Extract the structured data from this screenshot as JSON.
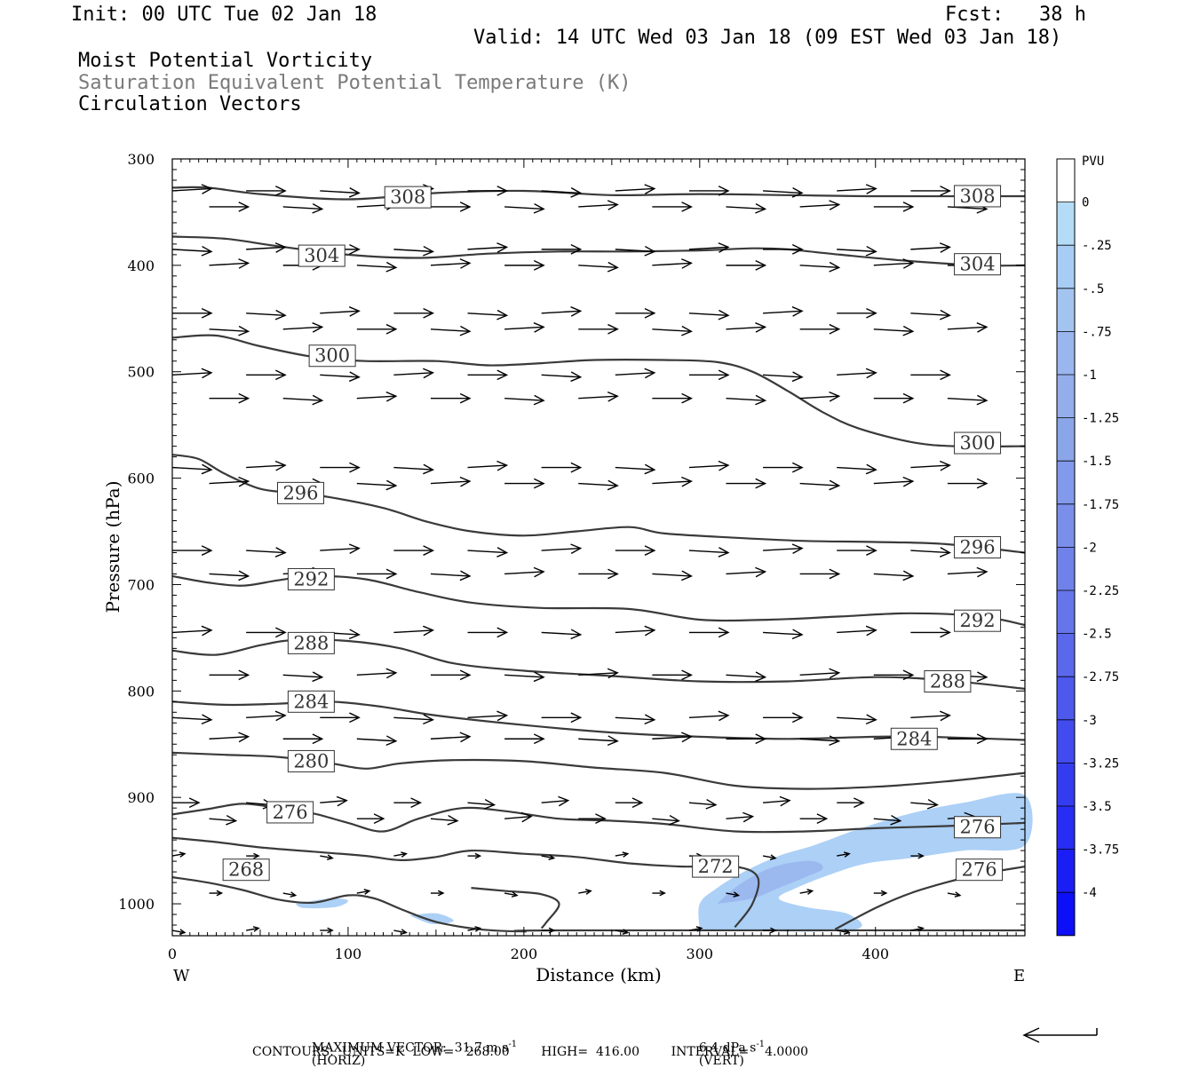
{
  "header": {
    "init": "Init: 00 UTC Tue 02 Jan 18",
    "fcst": "Fcst:   38 h",
    "valid": "Valid: 14 UTC Wed 03 Jan 18 (09 EST Wed 03 Jan 18)",
    "field1": "Moist Potential Vorticity",
    "field2": "Saturation Equivalent Potential Temperature (K)",
    "field3": "Circulation Vectors"
  },
  "footer": {
    "max_vector": "MAXIMUM VECTOR:  31.7 m s",
    "horiz": "(HORIZ)",
    "vert_val": "6.4 dPa s",
    "vert": "(VERT)",
    "contours": "CONTOURS:  UNITS=K  LOW=   268.00        HIGH=  416.00        INTERVAL=    4.0000",
    "exp": "-1"
  },
  "colors": {
    "contour": "#3a3a3a",
    "pv_light": "#b4dcf7",
    "pv_mid": "#a3c4ef",
    "pv_dark": "#8aa6e8"
  },
  "chart_data": {
    "type": "contour",
    "xlabel": "Distance (km)",
    "ylabel": "Pressure (hPa)",
    "xlim": [
      0,
      485
    ],
    "ylim": [
      300,
      1030
    ],
    "x_ticks": [
      0,
      100,
      200,
      300,
      400
    ],
    "x_tick_labels": [
      "0",
      "100",
      "200",
      "300",
      "400"
    ],
    "y_ticks": [
      300,
      400,
      500,
      600,
      700,
      800,
      900,
      1000
    ],
    "y_tick_labels": [
      "300",
      "400",
      "500",
      "600",
      "700",
      "800",
      "900",
      "1000"
    ],
    "west_label": "W",
    "east_label": "E",
    "colorbar": {
      "unit": "PVU",
      "levels": [
        "0",
        "-.25",
        "-.5",
        "-.75",
        "-1",
        "-1.25",
        "-1.5",
        "-1.75",
        "-2",
        "-2.25",
        "-2.5",
        "-2.75",
        "-3",
        "-3.25",
        "-3.5",
        "-3.75",
        "-4"
      ],
      "colors": [
        "#ffffff",
        "#b4dcf7",
        "#a8cdf5",
        "#a3c4ef",
        "#9ab6ee",
        "#94aeec",
        "#8aa6e8",
        "#829aeb",
        "#7a8fea",
        "#6f82ea",
        "#6575ea",
        "#5a68eb",
        "#4d59ec",
        "#414bee",
        "#343cf0",
        "#272df2",
        "#1a1ef4",
        "#0d0ff7"
      ]
    },
    "contours": [
      {
        "level": "308",
        "labels": [
          [
            134,
            336
          ],
          [
            458,
            335
          ]
        ],
        "points": [
          [
            0,
            327
          ],
          [
            20,
            327
          ],
          [
            50,
            333
          ],
          [
            100,
            338
          ],
          [
            150,
            332
          ],
          [
            200,
            330
          ],
          [
            250,
            334
          ],
          [
            300,
            333
          ],
          [
            350,
            334
          ],
          [
            400,
            335
          ],
          [
            485,
            335
          ]
        ]
      },
      {
        "level": "304",
        "labels": [
          [
            85,
            391
          ],
          [
            458,
            399
          ]
        ],
        "points": [
          [
            0,
            373
          ],
          [
            30,
            375
          ],
          [
            60,
            382
          ],
          [
            100,
            390
          ],
          [
            140,
            393
          ],
          [
            180,
            389
          ],
          [
            220,
            387
          ],
          [
            260,
            387
          ],
          [
            300,
            386
          ],
          [
            330,
            384
          ],
          [
            350,
            385
          ],
          [
            380,
            390
          ],
          [
            420,
            396
          ],
          [
            460,
            400
          ],
          [
            485,
            400
          ]
        ]
      },
      {
        "level": "300",
        "labels": [
          [
            91,
            485
          ],
          [
            458,
            567
          ]
        ],
        "points": [
          [
            0,
            468
          ],
          [
            25,
            466
          ],
          [
            50,
            476
          ],
          [
            80,
            486
          ],
          [
            110,
            490
          ],
          [
            150,
            490
          ],
          [
            180,
            494
          ],
          [
            210,
            492
          ],
          [
            240,
            489
          ],
          [
            280,
            489
          ],
          [
            310,
            491
          ],
          [
            330,
            500
          ],
          [
            350,
            518
          ],
          [
            370,
            538
          ],
          [
            390,
            553
          ],
          [
            420,
            566
          ],
          [
            445,
            570
          ],
          [
            485,
            570
          ]
        ]
      },
      {
        "level": "296",
        "labels": [
          [
            73,
            614
          ],
          [
            458,
            665
          ]
        ],
        "points": [
          [
            0,
            578
          ],
          [
            15,
            582
          ],
          [
            30,
            596
          ],
          [
            50,
            610
          ],
          [
            70,
            614
          ],
          [
            90,
            618
          ],
          [
            120,
            628
          ],
          [
            145,
            641
          ],
          [
            170,
            650
          ],
          [
            200,
            654
          ],
          [
            230,
            650
          ],
          [
            260,
            646
          ],
          [
            280,
            652
          ],
          [
            320,
            656
          ],
          [
            360,
            659
          ],
          [
            400,
            660
          ],
          [
            440,
            662
          ],
          [
            485,
            670
          ]
        ]
      },
      {
        "level": "292",
        "labels": [
          [
            79,
            695
          ],
          [
            458,
            734
          ]
        ],
        "points": [
          [
            0,
            692
          ],
          [
            20,
            698
          ],
          [
            40,
            701
          ],
          [
            60,
            696
          ],
          [
            80,
            692
          ],
          [
            110,
            695
          ],
          [
            140,
            707
          ],
          [
            170,
            717
          ],
          [
            210,
            722
          ],
          [
            260,
            723
          ],
          [
            300,
            733
          ],
          [
            340,
            733
          ],
          [
            380,
            730
          ],
          [
            420,
            727
          ],
          [
            460,
            730
          ],
          [
            485,
            738
          ]
        ]
      },
      {
        "level": "288",
        "labels": [
          [
            79,
            755
          ],
          [
            441,
            791
          ]
        ],
        "points": [
          [
            0,
            762
          ],
          [
            25,
            766
          ],
          [
            50,
            757
          ],
          [
            70,
            752
          ],
          [
            100,
            753
          ],
          [
            130,
            760
          ],
          [
            160,
            774
          ],
          [
            200,
            781
          ],
          [
            250,
            786
          ],
          [
            300,
            791
          ],
          [
            350,
            791
          ],
          [
            400,
            787
          ],
          [
            440,
            790
          ],
          [
            485,
            798
          ]
        ]
      },
      {
        "level": "284",
        "labels": [
          [
            79,
            810
          ],
          [
            422,
            845
          ]
        ],
        "points": [
          [
            0,
            810
          ],
          [
            30,
            813
          ],
          [
            60,
            812
          ],
          [
            90,
            810
          ],
          [
            120,
            815
          ],
          [
            150,
            823
          ],
          [
            200,
            832
          ],
          [
            250,
            839
          ],
          [
            300,
            843
          ],
          [
            350,
            845
          ],
          [
            400,
            843
          ],
          [
            430,
            843
          ],
          [
            485,
            846
          ]
        ]
      },
      {
        "level": "280",
        "labels": [
          [
            79,
            866
          ]
        ],
        "points": [
          [
            0,
            858
          ],
          [
            30,
            860
          ],
          [
            60,
            862
          ],
          [
            90,
            868
          ],
          [
            110,
            873
          ],
          [
            130,
            868
          ],
          [
            160,
            865
          ],
          [
            200,
            866
          ],
          [
            240,
            872
          ],
          [
            280,
            877
          ],
          [
            320,
            889
          ],
          [
            360,
            892
          ],
          [
            400,
            890
          ],
          [
            440,
            885
          ],
          [
            485,
            877
          ]
        ]
      },
      {
        "level": "276",
        "labels": [
          [
            67,
            914
          ],
          [
            458,
            928
          ],
          [
            459,
            968
          ]
        ],
        "points": [
          [
            0,
            916
          ],
          [
            20,
            911
          ],
          [
            40,
            906
          ],
          [
            60,
            910
          ],
          [
            80,
            915
          ],
          [
            100,
            924
          ],
          [
            120,
            932
          ],
          [
            140,
            920
          ],
          [
            165,
            910
          ],
          [
            190,
            913
          ],
          [
            220,
            920
          ],
          [
            250,
            922
          ],
          [
            280,
            925
          ],
          [
            320,
            932
          ],
          [
            360,
            932
          ],
          [
            400,
            929
          ],
          [
            440,
            927
          ],
          [
            485,
            924
          ]
        ]
      },
      {
        "level": "276-b",
        "points": [
          [
            377,
            1024
          ],
          [
            400,
            1004
          ],
          [
            420,
            990
          ],
          [
            440,
            980
          ],
          [
            460,
            972
          ],
          [
            485,
            965
          ]
        ]
      },
      {
        "level": "272",
        "labels": [
          [
            309,
            965
          ]
        ],
        "points": [
          [
            0,
            938
          ],
          [
            25,
            942
          ],
          [
            50,
            947
          ],
          [
            80,
            951
          ],
          [
            110,
            955
          ],
          [
            130,
            959
          ],
          [
            150,
            956
          ],
          [
            170,
            950
          ],
          [
            200,
            953
          ],
          [
            230,
            956
          ],
          [
            260,
            962
          ],
          [
            290,
            965
          ],
          [
            320,
            965
          ],
          [
            333,
            975
          ],
          [
            330,
            1000
          ],
          [
            320,
            1022
          ]
        ]
      },
      {
        "level": "268",
        "labels": [
          [
            42,
            968
          ]
        ],
        "points": [
          [
            0,
            975
          ],
          [
            20,
            980
          ],
          [
            40,
            987
          ],
          [
            60,
            996
          ],
          [
            80,
            999
          ],
          [
            100,
            992
          ],
          [
            115,
            995
          ],
          [
            130,
            1005
          ],
          [
            150,
            1017
          ],
          [
            175,
            1024
          ],
          [
            200,
            1026
          ],
          [
            220,
            1025
          ],
          [
            485,
            1025
          ]
        ]
      },
      {
        "level": "268-b",
        "points": [
          [
            170,
            985
          ],
          [
            190,
            988
          ],
          [
            210,
            991
          ],
          [
            220,
            1000
          ],
          [
            213,
            1017
          ],
          [
            210,
            1023
          ]
        ]
      }
    ],
    "pv_regions": [
      {
        "level": "-.25",
        "points": [
          [
            300,
            1025
          ],
          [
            300,
            1000
          ],
          [
            310,
            985
          ],
          [
            325,
            970
          ],
          [
            345,
            955
          ],
          [
            365,
            945
          ],
          [
            390,
            930
          ],
          [
            420,
            915
          ],
          [
            450,
            905
          ],
          [
            485,
            898
          ],
          [
            485,
            945
          ],
          [
            450,
            950
          ],
          [
            420,
            957
          ],
          [
            395,
            962
          ],
          [
            375,
            972
          ],
          [
            355,
            985
          ],
          [
            345,
            995
          ],
          [
            360,
            1003
          ],
          [
            385,
            1010
          ],
          [
            385,
            1025
          ]
        ]
      },
      {
        "level": "-.75",
        "points": [
          [
            310,
            1000
          ],
          [
            320,
            985
          ],
          [
            335,
            970
          ],
          [
            350,
            962
          ],
          [
            365,
            960
          ],
          [
            370,
            967
          ],
          [
            360,
            975
          ],
          [
            345,
            985
          ],
          [
            330,
            995
          ]
        ]
      },
      {
        "level": "-.25",
        "points": [
          [
            70,
            1000
          ],
          [
            90,
            995
          ],
          [
            100,
            997
          ],
          [
            93,
            1003
          ],
          [
            75,
            1004
          ]
        ]
      },
      {
        "level": "-.25",
        "points": [
          [
            135,
            1011
          ],
          [
            150,
            1009
          ],
          [
            160,
            1016
          ],
          [
            148,
            1019
          ]
        ]
      }
    ],
    "vector_rows": [
      330,
      345,
      385,
      400,
      445,
      460,
      503,
      525,
      590,
      605,
      668,
      690,
      745,
      785,
      825,
      845,
      905,
      920,
      955,
      990,
      1025
    ]
  }
}
